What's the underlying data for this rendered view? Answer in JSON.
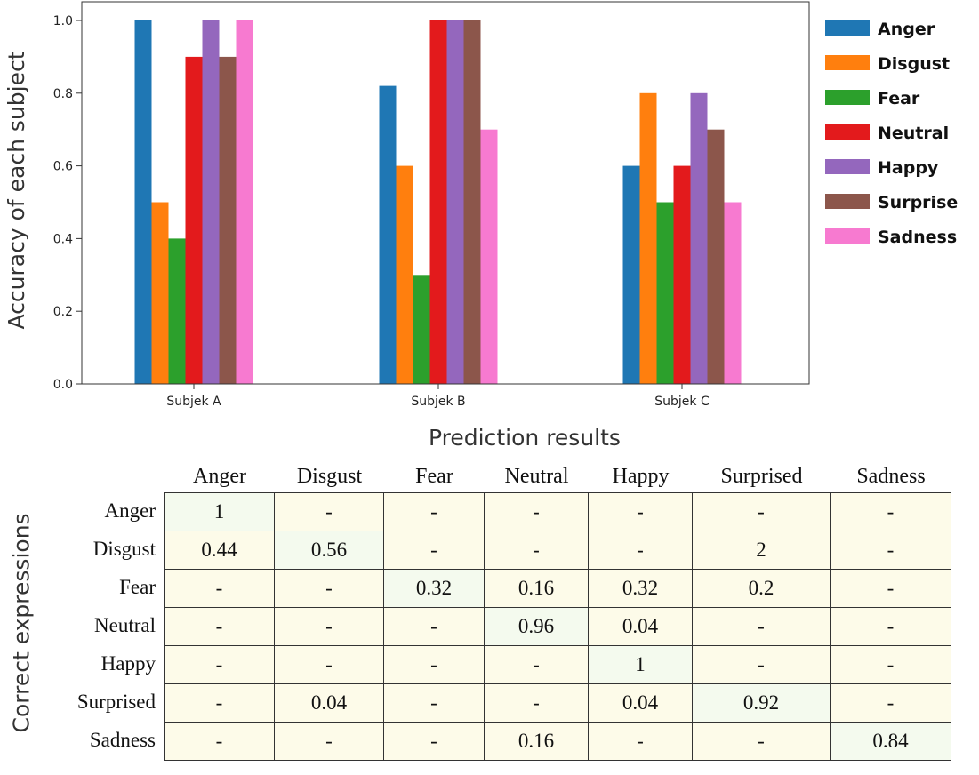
{
  "chart_data": [
    {
      "type": "bar",
      "ylabel": "Accuracy of each subject",
      "categories": [
        "Subjek A",
        "Subjek B",
        "Subjek C"
      ],
      "ylim": [
        0,
        1.0
      ],
      "yticks": [
        "0.0",
        "0.2",
        "0.4",
        "0.6",
        "0.8",
        "1.0"
      ],
      "legend_position": "outside-right",
      "series": [
        {
          "name": "Anger",
          "color": "#1f77b4",
          "values": [
            1.0,
            0.82,
            0.6
          ]
        },
        {
          "name": "Disgust",
          "color": "#ff7f0e",
          "values": [
            0.5,
            0.6,
            0.8
          ]
        },
        {
          "name": "Fear",
          "color": "#2ca02c",
          "values": [
            0.4,
            0.3,
            0.5
          ]
        },
        {
          "name": "Neutral",
          "color": "#e31a1c",
          "values": [
            0.9,
            1.0,
            0.6
          ]
        },
        {
          "name": "Happy",
          "color": "#9467bd",
          "values": [
            1.0,
            1.0,
            0.8
          ]
        },
        {
          "name": "Surprise",
          "color": "#8c564b",
          "values": [
            0.9,
            1.0,
            0.7
          ]
        },
        {
          "name": "Sadness",
          "color": "#f77ad0",
          "values": [
            1.0,
            0.7,
            0.5
          ]
        }
      ]
    },
    {
      "type": "table",
      "title": "Prediction results",
      "ylabel": "Correct expressions",
      "columns": [
        "Anger",
        "Disgust",
        "Fear",
        "Neutral",
        "Happy",
        "Surprised",
        "Sadness"
      ],
      "rows": [
        "Anger",
        "Disgust",
        "Fear",
        "Neutral",
        "Happy",
        "Surprised",
        "Sadness"
      ],
      "cells": [
        [
          "1",
          "-",
          "-",
          "-",
          "-",
          "-",
          "-"
        ],
        [
          "0.44",
          "0.56",
          "-",
          "-",
          "-",
          "2",
          "-"
        ],
        [
          "-",
          "-",
          "0.32",
          "0.16",
          "0.32",
          "0.2",
          "-"
        ],
        [
          "-",
          "-",
          "-",
          "0.96",
          "0.04",
          "-",
          "-"
        ],
        [
          "-",
          "-",
          "-",
          "-",
          "1",
          "-",
          "-"
        ],
        [
          "-",
          "0.04",
          "-",
          "-",
          "0.04",
          "0.92",
          "-"
        ],
        [
          "-",
          "-",
          "-",
          "0.16",
          "-",
          "-",
          "0.84"
        ]
      ]
    }
  ]
}
